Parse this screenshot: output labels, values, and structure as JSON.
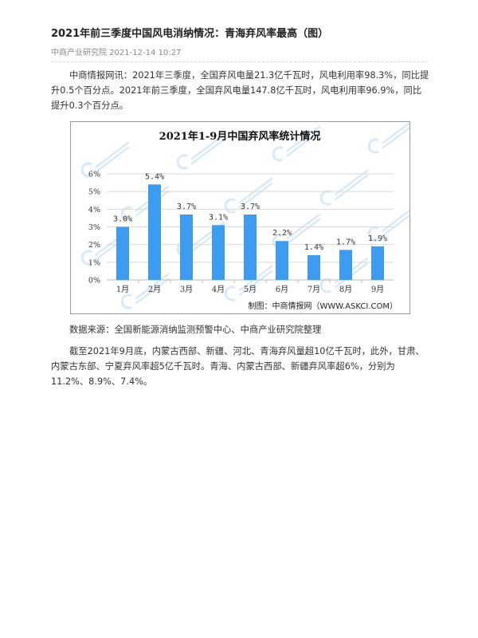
{
  "article": {
    "title": "2021年前三季度中国风电消纳情况：青海弃风率最高（图）",
    "source": "中商产业研究院",
    "datetime": "2021-12-14 10:27",
    "paragraph1": "中商情报网讯：2021年三季度，全国弃风电量21.3亿千瓦时，风电利用率98.3%，同比提升0.5个百分点。2021年前三季度，全国弃风电量147.8亿千瓦时，风电利用率96.9%，同比提升0.3个百分点。",
    "data_source": "数据来源：全国新能源消纳监测预警中心、中商产业研究院整理",
    "paragraph2": "截至2021年9月底，内蒙古西部、新疆、河北、青海弃风量超10亿千瓦时，此外，甘肃、内蒙古东部、宁夏弃风率超5亿千瓦时。青海、内蒙古西部、新疆弃风率超6%，分别为11.2%、8.9%、7.4%。"
  },
  "chart_data": {
    "type": "bar",
    "title": "2021年1-9月中国弃风率统计情况",
    "categories": [
      "1月",
      "2月",
      "3月",
      "4月",
      "5月",
      "6月",
      "7月",
      "8月",
      "9月"
    ],
    "values": [
      3.0,
      5.4,
      3.7,
      3.1,
      3.7,
      2.2,
      1.4,
      1.7,
      1.9
    ],
    "data_labels": [
      "3.0%",
      "5.4%",
      "3.7%",
      "3.1%",
      "3.7%",
      "2.2%",
      "1.4%",
      "1.7%",
      "1.9%"
    ],
    "yticks": [
      "0%",
      "1%",
      "2%",
      "3%",
      "4%",
      "5%",
      "6%"
    ],
    "ylim": [
      0,
      6
    ],
    "grid": true,
    "credit": "制图：中商情报网（WWW.ASKCI.COM）",
    "watermark": "中商产业研究院",
    "colors": {
      "bar": "#3d9cf0",
      "grid": "#d9d9d9",
      "watermark": "#dbe9f7"
    }
  }
}
